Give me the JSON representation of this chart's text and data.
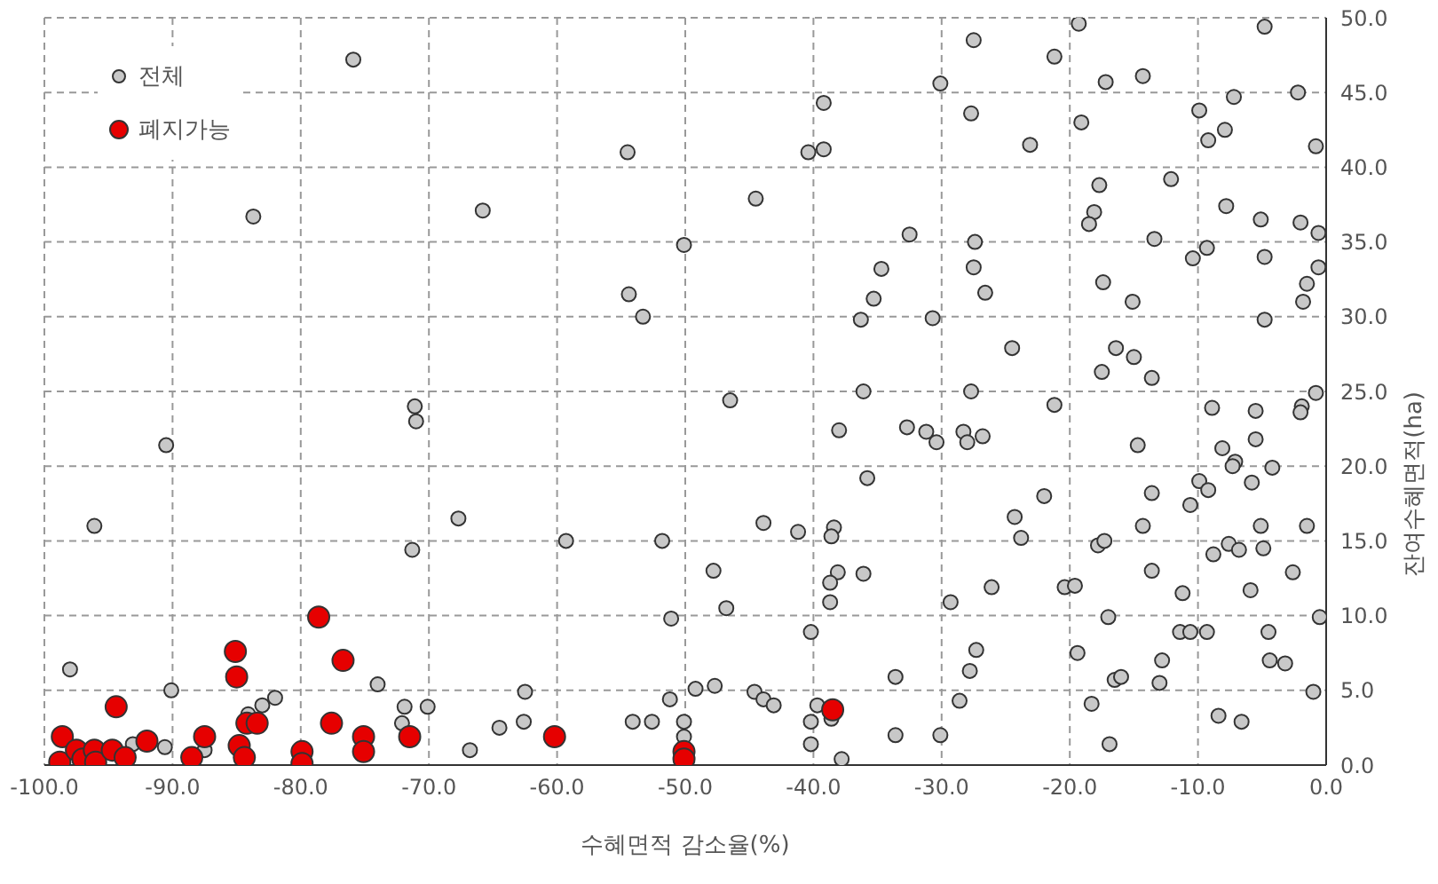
{
  "chart_data": {
    "type": "scatter",
    "xlabel": "수혜면적 감소율(%)",
    "ylabel": "잔여수혜면적(ha)",
    "xlim": [
      -100,
      0
    ],
    "ylim": [
      0,
      50
    ],
    "xticks": [
      {
        "value": -100,
        "label": "-100.0"
      },
      {
        "value": -90,
        "label": "-90.0"
      },
      {
        "value": -80,
        "label": "-80.0"
      },
      {
        "value": -70,
        "label": "-70.0"
      },
      {
        "value": -60,
        "label": "-60.0"
      },
      {
        "value": -50,
        "label": "-50.0"
      },
      {
        "value": -40,
        "label": "-40.0"
      },
      {
        "value": -30,
        "label": "-30.0"
      },
      {
        "value": -20,
        "label": "-20.0"
      },
      {
        "value": -10,
        "label": "-10.0"
      },
      {
        "value": 0,
        "label": "0.0"
      }
    ],
    "yticks": [
      {
        "value": 0,
        "label": "0.0"
      },
      {
        "value": 5,
        "label": "5.0"
      },
      {
        "value": 10,
        "label": "10.0"
      },
      {
        "value": 15,
        "label": "15.0"
      },
      {
        "value": 20,
        "label": "20.0"
      },
      {
        "value": 25,
        "label": "25.0"
      },
      {
        "value": 30,
        "label": "30.0"
      },
      {
        "value": 35,
        "label": "35.0"
      },
      {
        "value": 40,
        "label": "40.0"
      },
      {
        "value": 45,
        "label": "45.0"
      },
      {
        "value": 50,
        "label": "50.0"
      }
    ],
    "grid": true,
    "legend": "top left",
    "marker": "circle",
    "series": [
      {
        "name": "전체",
        "color": "#c8c8c8",
        "x": [
          -75.9,
          -83.7,
          -65.8,
          -71.1,
          -71,
          -90.5,
          -96.1,
          -67.7,
          -71.3,
          -98,
          -90.1,
          -90.6,
          -93.1,
          -87.5,
          -84.1,
          -83,
          -82,
          -74,
          -71.9,
          -72.1,
          -70.1,
          -66.8,
          -39.2,
          -54.5,
          -40.4,
          -39.2,
          -44.5,
          -50.1,
          -34.7,
          -35.3,
          -54.4,
          -53.3,
          -36.3,
          -46.5,
          -36.1,
          -38,
          -35.8,
          -59.3,
          -51.8,
          -43.9,
          -41.2,
          -38.4,
          -38.6,
          -47.8,
          -38.1,
          -36.1,
          -38.7,
          -38.7,
          -46.8,
          -51.1,
          -40.2,
          -33.6,
          -62.5,
          -51.2,
          -49.2,
          -47.7,
          -44.6,
          -43.9,
          -43.1,
          -39.7,
          -38.6,
          -40.2,
          -64.5,
          -62.6,
          -54.1,
          -52.6,
          -50.1,
          -50.1,
          -40.2,
          -33.6,
          -37.8,
          -19.3,
          -4.8,
          -27.5,
          -21.2,
          -30.1,
          -17.2,
          -14.3,
          -27.7,
          -19.1,
          -9.9,
          -7.2,
          -2.2,
          -7.9,
          -9.2,
          -0.8,
          -23.1,
          -17.7,
          -12.1,
          -18.1,
          -18.5,
          -7.8,
          -5.1,
          -2,
          -0.6,
          -32.5,
          -27.4,
          -13.4,
          -10.4,
          -9.3,
          -4.8,
          -27.5,
          -0.6,
          -17.4,
          -1.5,
          -26.6,
          -15.1,
          -1.8,
          -30.7,
          -4.8,
          -24.5,
          -16.4,
          -15,
          -17.5,
          -13.6,
          -27.7,
          -0.8,
          -21.2,
          -8.9,
          -5.5,
          -1.9,
          -2,
          -32.7,
          -31.2,
          -30.4,
          -28.3,
          -28,
          -26.8,
          -14.7,
          -8.1,
          -5.5,
          -7.1,
          -7.3,
          -4.2,
          -9.9,
          -9.2,
          -5.8,
          -13.6,
          -22,
          -10.6,
          -24.3,
          -14.3,
          -5.1,
          -1.5,
          -23.8,
          -17.8,
          -17.3,
          -7.6,
          -6.8,
          -4.9,
          -8.8,
          -13.6,
          -2.6,
          -26.1,
          -20.4,
          -19.6,
          -11.2,
          -5.9,
          -29.3,
          -17,
          -0.5,
          -11.4,
          -10.6,
          -9.3,
          -4.5,
          -27.3,
          -19.4,
          -27.8,
          -12.8,
          -4.4,
          -3.2,
          -16.5,
          -16,
          -13,
          -1,
          -28.6,
          -18.3,
          -8.4,
          -6.6,
          -30.1,
          -16.9
        ],
        "values": [
          47.2,
          36.7,
          37.1,
          24,
          23,
          21.4,
          16,
          16.5,
          14.4,
          6.4,
          5,
          1.2,
          1.4,
          1,
          3.4,
          4,
          4.5,
          5.4,
          3.9,
          2.8,
          3.9,
          1,
          44.3,
          41,
          41,
          41.2,
          37.9,
          34.8,
          33.2,
          31.2,
          31.5,
          30,
          29.8,
          24.4,
          25,
          22.4,
          19.2,
          15,
          15,
          16.2,
          15.6,
          15.9,
          15.3,
          13,
          12.9,
          12.8,
          12.2,
          10.9,
          10.5,
          9.8,
          8.9,
          5.9,
          4.9,
          4.4,
          5.1,
          5.3,
          4.9,
          4.4,
          4,
          4,
          3.1,
          2.9,
          2.5,
          2.9,
          2.9,
          2.9,
          2.9,
          1.9,
          1.4,
          2,
          0.4,
          49.6,
          49.4,
          48.5,
          47.4,
          45.6,
          45.7,
          46.1,
          43.6,
          43,
          43.8,
          44.7,
          45,
          42.5,
          41.8,
          41.4,
          41.5,
          38.8,
          39.2,
          37,
          36.2,
          37.4,
          36.5,
          36.3,
          35.6,
          35.5,
          35,
          35.2,
          33.9,
          34.6,
          34,
          33.3,
          33.3,
          32.3,
          32.2,
          31.6,
          31,
          31,
          29.9,
          29.8,
          27.9,
          27.9,
          27.3,
          26.3,
          25.9,
          25,
          24.9,
          24.1,
          23.9,
          23.7,
          24,
          23.6,
          22.6,
          22.3,
          21.6,
          22.3,
          21.6,
          22,
          21.4,
          21.2,
          21.8,
          20.3,
          20,
          19.9,
          19,
          18.4,
          18.9,
          18.2,
          18,
          17.4,
          16.6,
          16,
          16,
          16,
          15.2,
          14.7,
          15,
          14.8,
          14.4,
          14.5,
          14.1,
          13,
          12.9,
          11.9,
          11.9,
          12,
          11.5,
          11.7,
          10.9,
          9.9,
          9.9,
          8.9,
          8.9,
          8.9,
          8.9,
          7.7,
          7.5,
          6.3,
          7,
          7,
          6.8,
          5.7,
          5.9,
          5.5,
          4.9,
          4.3,
          4.1,
          3.3,
          2.9,
          2,
          1.4
        ]
      },
      {
        "name": "폐지가능",
        "color": "#e60000",
        "x": [
          -98.8,
          -98.6,
          -97.5,
          -97,
          -96.1,
          -96,
          -94.7,
          -94.4,
          -93.7,
          -92,
          -88.5,
          -87.5,
          -85.1,
          -85,
          -84.8,
          -84.4,
          -84.2,
          -83.4,
          -79.9,
          -79.9,
          -78.6,
          -77.6,
          -76.7,
          -75.1,
          -75.1,
          -71.5,
          -60.2,
          -50.1,
          -50.1,
          -38.5
        ],
        "values": [
          0.2,
          1.9,
          1,
          0.4,
          1,
          0.2,
          1,
          3.9,
          0.5,
          1.6,
          0.5,
          1.9,
          7.6,
          5.9,
          1.3,
          0.5,
          2.8,
          2.8,
          0.9,
          0.1,
          9.9,
          2.8,
          7,
          1.9,
          0.9,
          1.9,
          1.9,
          0.9,
          0.4,
          3.7
        ]
      }
    ]
  }
}
